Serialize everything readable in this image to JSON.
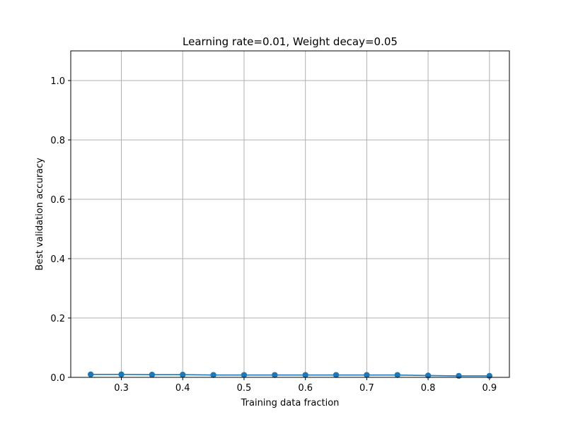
{
  "chart_data": {
    "type": "line",
    "title": "Learning rate=0.01, Weight decay=0.05",
    "xlabel": "Training data fraction",
    "ylabel": "Best validation accuracy",
    "x": [
      0.25,
      0.3,
      0.35,
      0.4,
      0.45,
      0.5,
      0.55,
      0.6,
      0.65,
      0.7,
      0.75,
      0.8,
      0.85,
      0.9
    ],
    "series": [
      {
        "values": [
          0.01,
          0.01,
          0.009,
          0.009,
          0.008,
          0.008,
          0.008,
          0.008,
          0.008,
          0.008,
          0.008,
          0.006,
          0.005,
          0.005
        ],
        "color": "#1f77b4",
        "marker": "circle"
      }
    ],
    "xlim": [
      0.2175,
      0.9325
    ],
    "ylim": [
      0,
      1.1
    ],
    "xticks": [
      0.3,
      0.4,
      0.5,
      0.6,
      0.7,
      0.8,
      0.9
    ],
    "xtick_labels": [
      "0.3",
      "0.4",
      "0.5",
      "0.6",
      "0.7",
      "0.8",
      "0.9"
    ],
    "yticks": [
      0.0,
      0.2,
      0.4,
      0.6,
      0.8,
      1.0
    ],
    "ytick_labels": [
      "0.0",
      "0.2",
      "0.4",
      "0.6",
      "0.8",
      "1.0"
    ],
    "grid": true,
    "grid_color": "#b0b0b0",
    "legend": "none"
  }
}
